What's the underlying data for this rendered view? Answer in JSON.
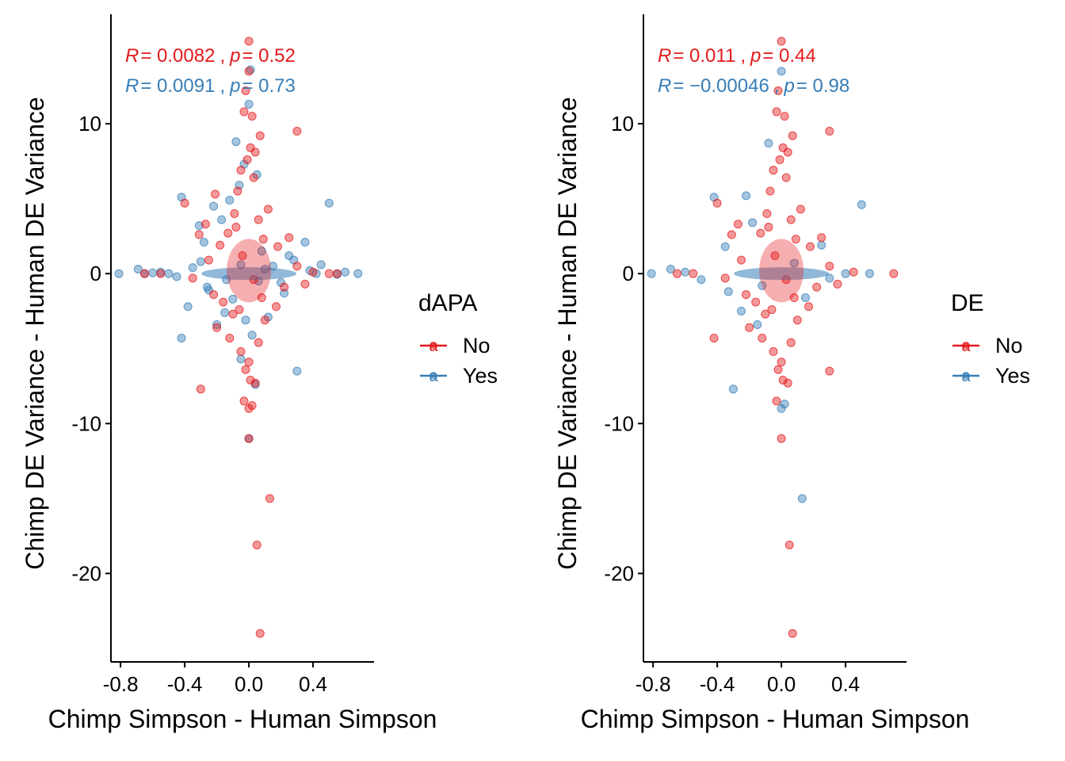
{
  "colors": {
    "no": "#E41A1C",
    "yes": "#377EB8",
    "axis": "#000000"
  },
  "chart_data": [
    {
      "type": "scatter",
      "xlabel": "Chimp Simpson - Human Simpson",
      "ylabel": "Chimp DE Variance - Human DE Variance",
      "xlim": [
        -0.86,
        0.78
      ],
      "ylim": [
        -25.9,
        17.3
      ],
      "xticks": [
        -0.8,
        -0.4,
        0.0,
        0.4
      ],
      "xtick_labels": [
        "-0.8",
        "-0.4",
        "0.0",
        "0.4"
      ],
      "yticks": [
        10,
        0,
        -10,
        -20
      ],
      "ytick_labels": [
        "10",
        "0",
        "-10",
        "-20"
      ],
      "grid": false,
      "legend": {
        "title": "dAPA",
        "placement": "right",
        "entries": [
          {
            "key": "a",
            "label": "No",
            "series": "No"
          },
          {
            "key": "a",
            "label": "Yes",
            "series": "Yes"
          }
        ]
      },
      "annotations": [
        {
          "series": "No",
          "r_sym": "R",
          "r_val": "= 0.0082",
          "sep": ",",
          "p_sym": "p",
          "p_val": "= 0.52"
        },
        {
          "series": "Yes",
          "r_sym": "R",
          "r_val": "= 0.0091",
          "sep": ",",
          "p_sym": "p",
          "p_val": "= 0.73"
        }
      ],
      "series": [
        {
          "name": "Yes",
          "points": [
            [
              -0.81,
              0.0
            ],
            [
              -0.69,
              0.3
            ],
            [
              -0.65,
              0.0
            ],
            [
              -0.6,
              0.05
            ],
            [
              -0.55,
              0.1
            ],
            [
              -0.5,
              0.0
            ],
            [
              -0.45,
              -0.2
            ],
            [
              -0.42,
              5.1
            ],
            [
              -0.42,
              -4.3
            ],
            [
              -0.38,
              -2.2
            ],
            [
              -0.35,
              0.4
            ],
            [
              -0.31,
              3.2
            ],
            [
              -0.28,
              2.1
            ],
            [
              -0.25,
              -1.1
            ],
            [
              -0.22,
              4.5
            ],
            [
              -0.2,
              -3.4
            ],
            [
              -0.17,
              3.6
            ],
            [
              -0.15,
              -2.6
            ],
            [
              -0.12,
              4.9
            ],
            [
              -0.1,
              -1.7
            ],
            [
              -0.08,
              8.8
            ],
            [
              -0.06,
              5.9
            ],
            [
              -0.05,
              -5.7
            ],
            [
              -0.03,
              7.3
            ],
            [
              -0.02,
              -3.1
            ],
            [
              0.0,
              11.3
            ],
            [
              0.0,
              -11.0
            ],
            [
              0.01,
              13.6
            ],
            [
              0.02,
              -4.1
            ],
            [
              0.04,
              -7.4
            ],
            [
              0.05,
              6.6
            ],
            [
              0.08,
              1.5
            ],
            [
              0.12,
              -2.9
            ],
            [
              0.15,
              0.5
            ],
            [
              0.2,
              -0.6
            ],
            [
              0.25,
              1.2
            ],
            [
              0.3,
              -6.5
            ],
            [
              0.35,
              2.1
            ],
            [
              0.38,
              0.2
            ],
            [
              0.42,
              0.0
            ],
            [
              0.45,
              0.6
            ],
            [
              0.5,
              4.7
            ],
            [
              0.55,
              -0.05
            ],
            [
              0.6,
              0.1
            ],
            [
              0.68,
              0.0
            ],
            [
              -0.3,
              0.8
            ],
            [
              -0.26,
              -0.9
            ],
            [
              0.22,
              -1.3
            ],
            [
              0.28,
              0.9
            ],
            [
              -0.14,
              -0.4
            ],
            [
              0.1,
              0.3
            ],
            [
              -0.05,
              0.6
            ],
            [
              0.06,
              -0.5
            ]
          ]
        },
        {
          "name": "No",
          "points": [
            [
              0.0,
              15.5
            ],
            [
              0.0,
              13.5
            ],
            [
              -0.02,
              12.2
            ],
            [
              -0.03,
              10.8
            ],
            [
              0.02,
              10.5
            ],
            [
              0.07,
              9.2
            ],
            [
              0.3,
              9.5
            ],
            [
              0.01,
              8.4
            ],
            [
              -0.01,
              7.6
            ],
            [
              0.04,
              8.1
            ],
            [
              -0.05,
              6.9
            ],
            [
              0.03,
              6.4
            ],
            [
              -0.07,
              5.5
            ],
            [
              -0.21,
              5.3
            ],
            [
              0.12,
              4.3
            ],
            [
              -0.4,
              4.7
            ],
            [
              -0.09,
              4.0
            ],
            [
              -0.27,
              3.3
            ],
            [
              0.06,
              3.6
            ],
            [
              -0.13,
              2.7
            ],
            [
              -0.31,
              2.6
            ],
            [
              0.25,
              2.4
            ],
            [
              0.18,
              1.8
            ],
            [
              -0.18,
              1.9
            ],
            [
              -0.25,
              0.9
            ],
            [
              0.3,
              0.5
            ],
            [
              0.4,
              0.1
            ],
            [
              0.5,
              0.0
            ],
            [
              -0.55,
              0.0
            ],
            [
              -0.65,
              0.0
            ],
            [
              0.55,
              0.0
            ],
            [
              -0.35,
              -0.3
            ],
            [
              0.35,
              -0.7
            ],
            [
              -0.22,
              -1.4
            ],
            [
              0.22,
              -0.9
            ],
            [
              -0.16,
              -1.9
            ],
            [
              0.17,
              -2.2
            ],
            [
              -0.1,
              -2.7
            ],
            [
              0.1,
              -3.1
            ],
            [
              -0.2,
              -3.6
            ],
            [
              -0.12,
              -4.3
            ],
            [
              0.06,
              -4.6
            ],
            [
              -0.05,
              -5.2
            ],
            [
              0.0,
              -5.9
            ],
            [
              -0.02,
              -6.4
            ],
            [
              0.01,
              -7.1
            ],
            [
              0.04,
              -7.3
            ],
            [
              -0.3,
              -7.7
            ],
            [
              -0.03,
              -8.5
            ],
            [
              0.02,
              -8.8
            ],
            [
              0.0,
              -9.0
            ],
            [
              0.0,
              -11.0
            ],
            [
              0.13,
              -15.0
            ],
            [
              0.05,
              -18.1
            ],
            [
              0.07,
              -24.0
            ],
            [
              -0.08,
              3.1
            ],
            [
              0.08,
              -1.6
            ],
            [
              -0.04,
              1.2
            ],
            [
              0.03,
              -0.4
            ],
            [
              -0.06,
              -2.4
            ],
            [
              0.09,
              2.3
            ]
          ]
        }
      ]
    },
    {
      "type": "scatter",
      "xlabel": "Chimp Simpson - Human Simpson",
      "ylabel": "Chimp DE Variance - Human DE Variance",
      "xlim": [
        -0.86,
        0.78
      ],
      "ylim": [
        -25.9,
        17.3
      ],
      "xticks": [
        -0.8,
        -0.4,
        0.0,
        0.4
      ],
      "xtick_labels": [
        "-0.8",
        "-0.4",
        "0.0",
        "0.4"
      ],
      "yticks": [
        10,
        0,
        -10,
        -20
      ],
      "ytick_labels": [
        "10",
        "0",
        "-10",
        "-20"
      ],
      "grid": false,
      "legend": {
        "title": "DE",
        "placement": "right",
        "entries": [
          {
            "key": "a",
            "label": "No",
            "series": "No"
          },
          {
            "key": "a",
            "label": "Yes",
            "series": "Yes"
          }
        ]
      },
      "annotations": [
        {
          "series": "No",
          "r_sym": "R",
          "r_val": "= 0.011",
          "sep": ",",
          "p_sym": "p",
          "p_val": "= 0.44"
        },
        {
          "series": "Yes",
          "r_sym": "R",
          "r_val": "= −0.00046",
          "sep": ",",
          "p_sym": "p",
          "p_val": "= 0.98"
        }
      ],
      "series": [
        {
          "name": "Yes",
          "points": [
            [
              -0.81,
              0.0
            ],
            [
              -0.69,
              0.3
            ],
            [
              -0.42,
              5.1
            ],
            [
              -0.3,
              -7.7
            ],
            [
              -0.22,
              5.2
            ],
            [
              -0.15,
              -3.4
            ],
            [
              -0.08,
              8.7
            ],
            [
              0.0,
              13.5
            ],
            [
              0.0,
              -9.0
            ],
            [
              0.02,
              -8.7
            ],
            [
              0.13,
              -15.0
            ],
            [
              0.5,
              4.6
            ],
            [
              -0.33,
              -1.2
            ],
            [
              0.25,
              1.9
            ],
            [
              -0.18,
              3.4
            ],
            [
              0.15,
              -1.6
            ],
            [
              0.4,
              0.0
            ],
            [
              -0.5,
              -0.4
            ],
            [
              -0.35,
              1.8
            ],
            [
              -0.25,
              -2.5
            ],
            [
              0.3,
              -0.3
            ],
            [
              -0.6,
              0.1
            ],
            [
              0.55,
              0.0
            ],
            [
              -0.12,
              -0.8
            ],
            [
              0.08,
              0.7
            ]
          ]
        },
        {
          "name": "No",
          "points": [
            [
              0.0,
              15.5
            ],
            [
              -0.02,
              12.2
            ],
            [
              -0.03,
              10.8
            ],
            [
              0.02,
              10.5
            ],
            [
              0.07,
              9.2
            ],
            [
              0.3,
              9.5
            ],
            [
              0.01,
              8.4
            ],
            [
              -0.01,
              7.6
            ],
            [
              0.04,
              8.1
            ],
            [
              -0.05,
              6.9
            ],
            [
              0.03,
              6.4
            ],
            [
              -0.07,
              5.5
            ],
            [
              0.12,
              4.3
            ],
            [
              -0.4,
              4.7
            ],
            [
              -0.09,
              4.0
            ],
            [
              -0.27,
              3.3
            ],
            [
              0.06,
              3.6
            ],
            [
              -0.13,
              2.7
            ],
            [
              -0.31,
              2.6
            ],
            [
              0.25,
              2.4
            ],
            [
              0.18,
              1.8
            ],
            [
              -0.25,
              0.9
            ],
            [
              0.3,
              0.5
            ],
            [
              0.7,
              0.0
            ],
            [
              -0.55,
              0.0
            ],
            [
              -0.65,
              0.0
            ],
            [
              0.45,
              0.1
            ],
            [
              -0.35,
              -0.3
            ],
            [
              0.35,
              -0.7
            ],
            [
              -0.22,
              -1.4
            ],
            [
              0.22,
              -0.9
            ],
            [
              -0.16,
              -1.9
            ],
            [
              0.17,
              -2.2
            ],
            [
              -0.1,
              -2.7
            ],
            [
              0.1,
              -3.1
            ],
            [
              -0.2,
              -3.6
            ],
            [
              -0.12,
              -4.3
            ],
            [
              0.06,
              -4.6
            ],
            [
              -0.05,
              -5.2
            ],
            [
              0.0,
              -5.9
            ],
            [
              -0.02,
              -6.4
            ],
            [
              0.01,
              -7.1
            ],
            [
              0.04,
              -7.3
            ],
            [
              -0.03,
              -8.5
            ],
            [
              0.0,
              -11.0
            ],
            [
              0.05,
              -18.1
            ],
            [
              0.07,
              -24.0
            ],
            [
              -0.42,
              -4.3
            ],
            [
              0.3,
              -6.5
            ],
            [
              -0.08,
              3.1
            ],
            [
              0.08,
              -1.6
            ],
            [
              -0.04,
              1.2
            ],
            [
              0.03,
              -0.4
            ],
            [
              -0.06,
              -2.4
            ],
            [
              0.09,
              2.3
            ]
          ]
        }
      ]
    }
  ]
}
